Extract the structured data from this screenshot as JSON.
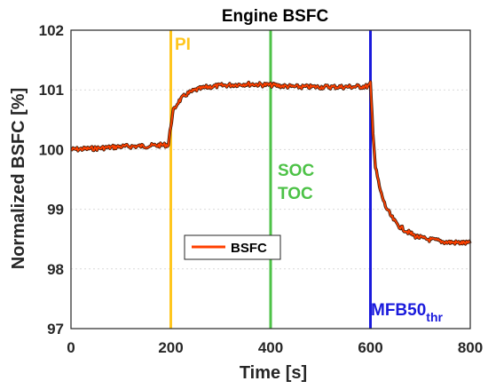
{
  "chart_data": {
    "type": "line",
    "title": "Engine BSFC",
    "xlabel": "Time [s]",
    "ylabel": "Normalized BSFC [%]",
    "xlim": [
      0,
      800
    ],
    "ylim": [
      97,
      102
    ],
    "xticks": [
      0,
      200,
      400,
      600,
      800
    ],
    "yticks": [
      97,
      98,
      99,
      100,
      101,
      102
    ],
    "grid": true,
    "legend": {
      "position": "center-left"
    },
    "series": [
      {
        "name": "BSFC",
        "color": "#ff4000",
        "x": [
          0,
          50,
          100,
          150,
          195,
          200,
          205,
          215,
          230,
          250,
          275,
          300,
          350,
          400,
          450,
          500,
          550,
          595,
          600,
          605,
          610,
          620,
          630,
          640,
          650,
          660,
          675,
          690,
          710,
          730,
          750,
          775,
          800
        ],
        "y": [
          100.0,
          100.02,
          100.05,
          100.06,
          100.08,
          100.4,
          100.65,
          100.8,
          100.92,
          101.0,
          101.05,
          101.07,
          101.1,
          101.08,
          101.05,
          101.05,
          101.05,
          101.06,
          101.1,
          100.3,
          99.7,
          99.3,
          99.05,
          98.9,
          98.78,
          98.7,
          98.62,
          98.55,
          98.5,
          98.48,
          98.45,
          98.44,
          98.43
        ]
      }
    ],
    "annotations": [
      {
        "x": 200,
        "label": "PI",
        "color": "#ffc61e"
      },
      {
        "x": 400,
        "label": "SOC",
        "label2": "TOC",
        "color": "#4dc247"
      },
      {
        "x": 600,
        "label": "MFB50",
        "subscript": "thr",
        "color": "#1a1adc"
      }
    ]
  }
}
